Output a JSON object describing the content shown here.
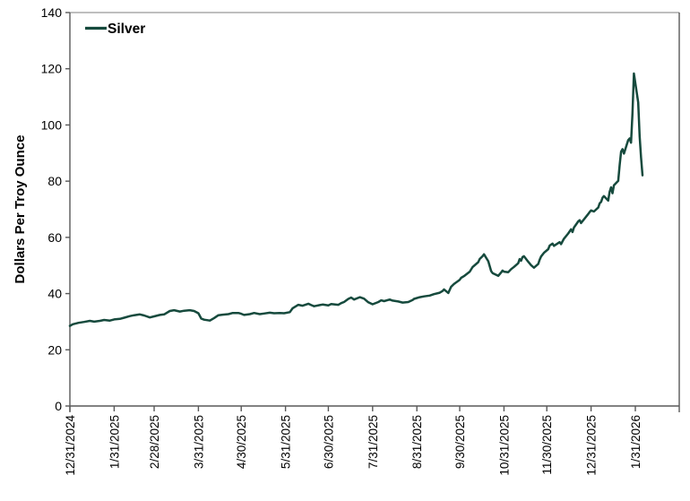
{
  "chart_data": {
    "type": "line",
    "title": "",
    "xlabel": "",
    "ylabel": "Dollars Per Troy Ounce",
    "ylim": [
      0,
      140
    ],
    "y_ticks": [
      0,
      20,
      40,
      60,
      80,
      100,
      120,
      140
    ],
    "grid": false,
    "legend": {
      "position": "top-left-inside",
      "entries": [
        {
          "label": "Silver",
          "color": "#164a3d"
        }
      ]
    },
    "x_ticks": [
      {
        "label": "12/31/2024",
        "date": "2024-12-31"
      },
      {
        "label": "1/31/2025",
        "date": "2025-01-31"
      },
      {
        "label": "2/28/2025",
        "date": "2025-02-28"
      },
      {
        "label": "3/31/2025",
        "date": "2025-03-31"
      },
      {
        "label": "4/30/2025",
        "date": "2025-04-30"
      },
      {
        "label": "5/31/2025",
        "date": "2025-05-31"
      },
      {
        "label": "6/30/2025",
        "date": "2025-06-30"
      },
      {
        "label": "7/31/2025",
        "date": "2025-07-31"
      },
      {
        "label": "8/31/2025",
        "date": "2025-08-31"
      },
      {
        "label": "9/30/2025",
        "date": "2025-09-30"
      },
      {
        "label": "10/31/2025",
        "date": "2025-10-31"
      },
      {
        "label": "11/30/2025",
        "date": "2025-11-30"
      },
      {
        "label": "12/31/2025",
        "date": "2025-12-31"
      },
      {
        "label": "1/31/2026",
        "date": "2026-01-31"
      }
    ],
    "series": [
      {
        "name": "Silver",
        "color": "#164a3d",
        "points": [
          [
            "2024-12-31",
            28.5
          ],
          [
            "2025-01-02",
            29.1
          ],
          [
            "2025-01-06",
            29.6
          ],
          [
            "2025-01-10",
            29.9
          ],
          [
            "2025-01-14",
            30.3
          ],
          [
            "2025-01-17",
            30.0
          ],
          [
            "2025-01-21",
            30.3
          ],
          [
            "2025-01-24",
            30.6
          ],
          [
            "2025-01-28",
            30.4
          ],
          [
            "2025-01-31",
            30.8
          ],
          [
            "2025-02-04",
            31.0
          ],
          [
            "2025-02-07",
            31.4
          ],
          [
            "2025-02-11",
            32.0
          ],
          [
            "2025-02-14",
            32.3
          ],
          [
            "2025-02-18",
            32.6
          ],
          [
            "2025-02-21",
            32.2
          ],
          [
            "2025-02-25",
            31.5
          ],
          [
            "2025-02-28",
            31.9
          ],
          [
            "2025-03-04",
            32.4
          ],
          [
            "2025-03-07",
            32.6
          ],
          [
            "2025-03-11",
            33.8
          ],
          [
            "2025-03-14",
            34.1
          ],
          [
            "2025-03-18",
            33.6
          ],
          [
            "2025-03-21",
            33.9
          ],
          [
            "2025-03-25",
            34.1
          ],
          [
            "2025-03-28",
            33.8
          ],
          [
            "2025-03-31",
            33.0
          ],
          [
            "2025-04-02",
            31.1
          ],
          [
            "2025-04-04",
            30.7
          ],
          [
            "2025-04-08",
            30.4
          ],
          [
            "2025-04-11",
            31.3
          ],
          [
            "2025-04-14",
            32.3
          ],
          [
            "2025-04-17",
            32.5
          ],
          [
            "2025-04-21",
            32.7
          ],
          [
            "2025-04-24",
            33.1
          ],
          [
            "2025-04-28",
            33.1
          ],
          [
            "2025-04-30",
            32.8
          ],
          [
            "2025-05-02",
            32.4
          ],
          [
            "2025-05-06",
            32.7
          ],
          [
            "2025-05-09",
            33.1
          ],
          [
            "2025-05-13",
            32.7
          ],
          [
            "2025-05-16",
            32.9
          ],
          [
            "2025-05-20",
            33.2
          ],
          [
            "2025-05-23",
            33.0
          ],
          [
            "2025-05-27",
            33.1
          ],
          [
            "2025-05-30",
            33.0
          ],
          [
            "2025-06-03",
            33.4
          ],
          [
            "2025-06-05",
            34.8
          ],
          [
            "2025-06-09",
            36.0
          ],
          [
            "2025-06-12",
            35.7
          ],
          [
            "2025-06-16",
            36.4
          ],
          [
            "2025-06-18",
            35.9
          ],
          [
            "2025-06-20",
            35.5
          ],
          [
            "2025-06-24",
            35.9
          ],
          [
            "2025-06-26",
            36.1
          ],
          [
            "2025-06-30",
            35.8
          ],
          [
            "2025-07-02",
            36.3
          ],
          [
            "2025-07-07",
            36.0
          ],
          [
            "2025-07-09",
            36.6
          ],
          [
            "2025-07-11",
            37.0
          ],
          [
            "2025-07-14",
            38.1
          ],
          [
            "2025-07-16",
            38.6
          ],
          [
            "2025-07-18",
            37.9
          ],
          [
            "2025-07-22",
            38.7
          ],
          [
            "2025-07-25",
            38.2
          ],
          [
            "2025-07-28",
            36.9
          ],
          [
            "2025-07-31",
            36.2
          ],
          [
            "2025-08-04",
            37.0
          ],
          [
            "2025-08-06",
            37.6
          ],
          [
            "2025-08-08",
            37.3
          ],
          [
            "2025-08-12",
            37.9
          ],
          [
            "2025-08-14",
            37.5
          ],
          [
            "2025-08-18",
            37.2
          ],
          [
            "2025-08-21",
            36.8
          ],
          [
            "2025-08-25",
            37.0
          ],
          [
            "2025-08-28",
            37.7
          ],
          [
            "2025-08-29",
            38.1
          ],
          [
            "2025-09-02",
            38.7
          ],
          [
            "2025-09-05",
            39.0
          ],
          [
            "2025-09-09",
            39.3
          ],
          [
            "2025-09-12",
            39.8
          ],
          [
            "2025-09-16",
            40.3
          ],
          [
            "2025-09-18",
            40.9
          ],
          [
            "2025-09-19",
            41.5
          ],
          [
            "2025-09-22",
            40.2
          ],
          [
            "2025-09-24",
            42.4
          ],
          [
            "2025-09-26",
            43.4
          ],
          [
            "2025-09-30",
            44.9
          ],
          [
            "2025-10-01",
            45.6
          ],
          [
            "2025-10-03",
            46.2
          ],
          [
            "2025-10-07",
            47.8
          ],
          [
            "2025-10-09",
            49.4
          ],
          [
            "2025-10-13",
            51.2
          ],
          [
            "2025-10-14",
            52.3
          ],
          [
            "2025-10-16",
            53.3
          ],
          [
            "2025-10-17",
            54.0
          ],
          [
            "2025-10-20",
            51.5
          ],
          [
            "2025-10-22",
            48.0
          ],
          [
            "2025-10-23",
            47.3
          ],
          [
            "2025-10-27",
            46.3
          ],
          [
            "2025-10-29",
            47.5
          ],
          [
            "2025-10-30",
            48.2
          ],
          [
            "2025-10-31",
            47.8
          ],
          [
            "2025-11-03",
            47.6
          ],
          [
            "2025-11-05",
            48.7
          ],
          [
            "2025-11-07",
            49.5
          ],
          [
            "2025-11-10",
            50.8
          ],
          [
            "2025-11-11",
            52.3
          ],
          [
            "2025-11-12",
            51.7
          ],
          [
            "2025-11-13",
            53.0
          ],
          [
            "2025-11-14",
            53.3
          ],
          [
            "2025-11-17",
            51.3
          ],
          [
            "2025-11-19",
            50.1
          ],
          [
            "2025-11-21",
            49.2
          ],
          [
            "2025-11-24",
            50.5
          ],
          [
            "2025-11-25",
            52.0
          ],
          [
            "2025-11-26",
            53.2
          ],
          [
            "2025-11-28",
            54.5
          ],
          [
            "2025-12-01",
            55.8
          ],
          [
            "2025-12-02",
            57.1
          ],
          [
            "2025-12-04",
            57.8
          ],
          [
            "2025-12-05",
            57.0
          ],
          [
            "2025-12-09",
            58.3
          ],
          [
            "2025-12-10",
            57.6
          ],
          [
            "2025-12-12",
            59.5
          ],
          [
            "2025-12-15",
            61.4
          ],
          [
            "2025-12-17",
            62.9
          ],
          [
            "2025-12-18",
            61.9
          ],
          [
            "2025-12-19",
            63.5
          ],
          [
            "2025-12-22",
            65.7
          ],
          [
            "2025-12-23",
            66.1
          ],
          [
            "2025-12-24",
            65.1
          ],
          [
            "2025-12-29",
            68.3
          ],
          [
            "2025-12-30",
            69.0
          ],
          [
            "2025-12-31",
            69.6
          ],
          [
            "2026-01-02",
            69.2
          ],
          [
            "2026-01-05",
            70.6
          ],
          [
            "2026-01-06",
            72.1
          ],
          [
            "2026-01-07",
            72.6
          ],
          [
            "2026-01-08",
            74.1
          ],
          [
            "2026-01-09",
            74.7
          ],
          [
            "2026-01-12",
            73.1
          ],
          [
            "2026-01-13",
            76.2
          ],
          [
            "2026-01-14",
            77.8
          ],
          [
            "2026-01-15",
            75.7
          ],
          [
            "2026-01-16",
            78.5
          ],
          [
            "2026-01-19",
            80.1
          ],
          [
            "2026-01-20",
            85.7
          ],
          [
            "2026-01-21",
            90.5
          ],
          [
            "2026-01-22",
            91.4
          ],
          [
            "2026-01-23",
            89.8
          ],
          [
            "2026-01-26",
            94.6
          ],
          [
            "2026-01-27",
            95.2
          ],
          [
            "2026-01-28",
            93.7
          ],
          [
            "2026-01-29",
            104.1
          ],
          [
            "2026-01-30",
            118.3
          ],
          [
            "2026-02-02",
            108.0
          ],
          [
            "2026-02-03",
            96.0
          ],
          [
            "2026-02-04",
            88.3
          ],
          [
            "2026-02-05",
            82.1
          ]
        ]
      }
    ]
  },
  "colors": {
    "line": "#164a3d",
    "axis": "#595959",
    "border_top": "#a9a9a9",
    "text": "#000000",
    "background": "#ffffff"
  }
}
